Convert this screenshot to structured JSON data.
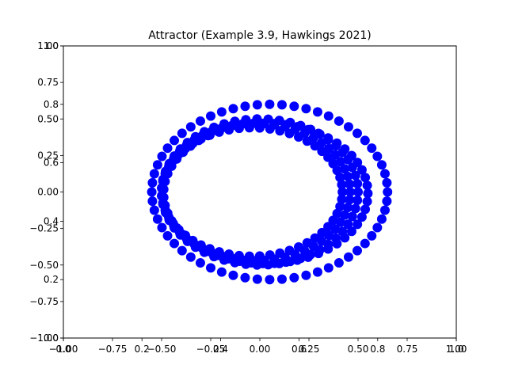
{
  "chart_data": {
    "type": "scatter",
    "title": "Attractor (Example 3.9, Hawkings 2021)",
    "xlabel": "",
    "ylabel": "",
    "grid": false,
    "marker_color": "#0000ff",
    "axes": [
      {
        "xlim": [
          0.0,
          1.0
        ],
        "ylim": [
          0.0,
          1.0
        ],
        "xticks": [
          "0.0",
          "0.2",
          "0.4",
          "0.6",
          "0.8",
          "1.0"
        ],
        "yticks": [
          "0.0",
          "0.2",
          "0.4",
          "0.6",
          "0.8",
          "1.0"
        ]
      },
      {
        "xlim": [
          -1.0,
          1.0
        ],
        "ylim": [
          -1.0,
          1.0
        ],
        "xticks": [
          "−1.00",
          "−0.75",
          "−0.50",
          "−0.25",
          "0.00",
          "0.25",
          "0.50",
          "0.75",
          "1.00"
        ],
        "yticks": [
          "−1.00",
          "−0.75",
          "−0.50",
          "−0.25",
          "0.00",
          "0.25",
          "0.50",
          "0.75",
          "1.00"
        ]
      }
    ],
    "series": [
      {
        "curves": [
          {
            "cx": 0.05,
            "cy": 0.0,
            "rx": 0.6,
            "ry": 0.6,
            "n": 60
          },
          {
            "cx": -0.02,
            "cy": 0.0,
            "rx": 0.48,
            "ry": 0.47,
            "n": 55
          },
          {
            "cx": 0.0,
            "cy": 0.0,
            "rx": 0.5,
            "ry": 0.5,
            "n": 55
          },
          {
            "cx": -0.04,
            "cy": 0.0,
            "rx": 0.46,
            "ry": 0.44,
            "n": 55
          },
          {
            "cx": 0.03,
            "cy": -0.01,
            "rx": 0.52,
            "ry": 0.48,
            "n": 55
          }
        ]
      }
    ]
  }
}
